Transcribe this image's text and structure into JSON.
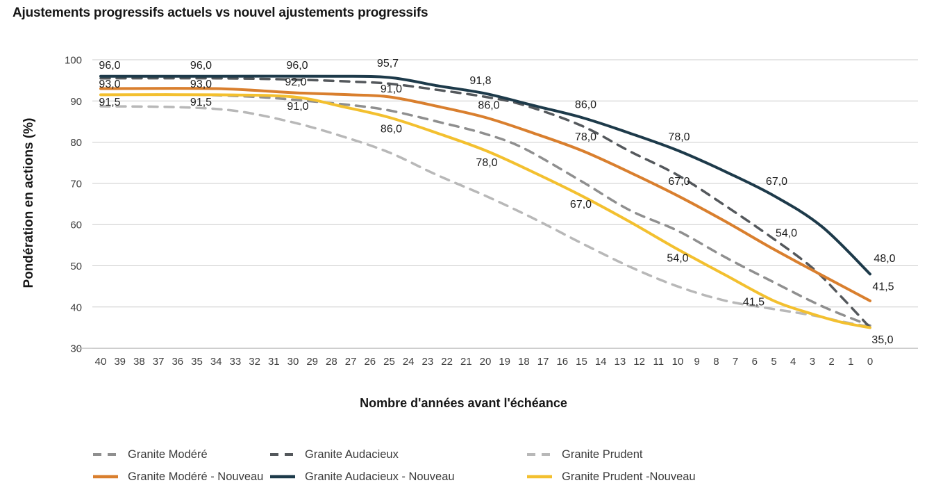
{
  "title": "Ajustements progressifs actuels vs nouvel ajustements progressifs",
  "chart_data": {
    "type": "line",
    "title": "Ajustements progressifs actuels vs nouvel ajustements progressifs",
    "xlabel": "Nombre d'années avant l'échéance",
    "ylabel": "Pondération en actions (%)",
    "x_ticks": [
      40,
      39,
      38,
      37,
      36,
      35,
      34,
      33,
      32,
      31,
      30,
      29,
      28,
      27,
      26,
      25,
      24,
      23,
      22,
      21,
      20,
      19,
      18,
      17,
      16,
      15,
      14,
      13,
      12,
      11,
      10,
      9,
      8,
      7,
      6,
      5,
      4,
      3,
      2,
      1,
      0
    ],
    "y_ticks": [
      100,
      90,
      80,
      70,
      60,
      50,
      40,
      30
    ],
    "ylim": [
      30,
      100
    ],
    "x_reversed": true,
    "grid": "horizontal",
    "decimal_separator": ",",
    "colors": {
      "granite_modere": "#8f8f8f",
      "granite_audacieux": "#54585c",
      "granite_prudent": "#b8b8b8",
      "granite_modere_nouveau": "#d97f2e",
      "granite_audacieux_nouveau": "#1d3a4a",
      "granite_prudent_nouveau": "#f3c02f",
      "gridline": "#cccccc"
    },
    "series": [
      {
        "id": "granite-prudent",
        "name": "Granite Prudent",
        "color": "#b8b8b8",
        "dashed": true,
        "points": [
          [
            40,
            88.7
          ],
          [
            36,
            88.5
          ],
          [
            33,
            87.6
          ],
          [
            30,
            84.8
          ],
          [
            27.5,
            81.5
          ],
          [
            25,
            77.5
          ],
          [
            22.5,
            72
          ],
          [
            20,
            67
          ],
          [
            17.5,
            61.5
          ],
          [
            15,
            55.5
          ],
          [
            12.5,
            49.8
          ],
          [
            10,
            45
          ],
          [
            7.5,
            41.5
          ],
          [
            5,
            39.5
          ],
          [
            3,
            38
          ],
          [
            1.5,
            36.5
          ],
          [
            0,
            35.2
          ]
        ],
        "labels": []
      },
      {
        "id": "granite-modere",
        "name": "Granite Modéré",
        "color": "#8f8f8f",
        "dashed": true,
        "points": [
          [
            40,
            91.5
          ],
          [
            35,
            91.5
          ],
          [
            32,
            91
          ],
          [
            30,
            90.3
          ],
          [
            27,
            89
          ],
          [
            25,
            87.7
          ],
          [
            22.5,
            85
          ],
          [
            20,
            82
          ],
          [
            18,
            78.5
          ],
          [
            15,
            70.5
          ],
          [
            12.5,
            63.5
          ],
          [
            10,
            58.5
          ],
          [
            7.5,
            52
          ],
          [
            5,
            46
          ],
          [
            2.5,
            40.2
          ],
          [
            0,
            35.5
          ]
        ],
        "labels": []
      },
      {
        "id": "granite-audacieux",
        "name": "Granite Audacieux",
        "color": "#54585c",
        "dashed": true,
        "points": [
          [
            40,
            95.5
          ],
          [
            34,
            95.5
          ],
          [
            30,
            95.2
          ],
          [
            27,
            94.7
          ],
          [
            25,
            94.2
          ],
          [
            22.5,
            92.7
          ],
          [
            20,
            91
          ],
          [
            18,
            89
          ],
          [
            15,
            84
          ],
          [
            12.5,
            77.8
          ],
          [
            10,
            72
          ],
          [
            7.5,
            64.5
          ],
          [
            5,
            56.5
          ],
          [
            3,
            49.5
          ],
          [
            1.5,
            42.5
          ],
          [
            0,
            35
          ]
        ],
        "labels": []
      },
      {
        "id": "granite-prudent-nouveau",
        "name": "Granite Prudent -Nouveau",
        "color": "#f3c02f",
        "dashed": false,
        "points": [
          [
            40,
            91.5
          ],
          [
            34,
            91.5
          ],
          [
            30,
            91
          ],
          [
            27.5,
            88.7
          ],
          [
            25,
            86
          ],
          [
            22.5,
            82.2
          ],
          [
            20,
            78
          ],
          [
            17.5,
            72.7
          ],
          [
            15,
            67
          ],
          [
            12.5,
            60.7
          ],
          [
            10,
            54
          ],
          [
            7.5,
            47.7
          ],
          [
            5,
            41.5
          ],
          [
            3,
            38.3
          ],
          [
            1.5,
            36.3
          ],
          [
            0,
            35
          ]
        ],
        "labels": [
          {
            "x": 40,
            "v": 91.5,
            "text": "91,5",
            "dx": 13,
            "dy": 10
          },
          {
            "x": 35,
            "v": 91.5,
            "text": "91,5",
            "dx": 6,
            "dy": 10
          },
          {
            "x": 30,
            "v": 91,
            "text": "91,0",
            "dx": 7,
            "dy": 13
          },
          {
            "x": 25,
            "v": 86,
            "text": "86,0",
            "dx": 3,
            "dy": 16
          },
          {
            "x": 20,
            "v": 78,
            "text": "78,0",
            "dx": 2,
            "dy": 17
          },
          {
            "x": 15,
            "v": 67,
            "text": "67,0",
            "dx": -1,
            "dy": 12
          },
          {
            "x": 10,
            "v": 54,
            "text": "54,0",
            "dx": 0,
            "dy": 12
          },
          {
            "x": 5,
            "v": 41.5,
            "text": "41,5",
            "dx": -29,
            "dy": 1
          },
          {
            "x": 0,
            "v": 35,
            "text": "35,0",
            "dx": 18,
            "dy": 17
          }
        ]
      },
      {
        "id": "granite-modere-nouveau",
        "name": "Granite Modéré - Nouveau",
        "color": "#d97f2e",
        "dashed": false,
        "points": [
          [
            40,
            93
          ],
          [
            34,
            93
          ],
          [
            30,
            92
          ],
          [
            27,
            91.5
          ],
          [
            25,
            91
          ],
          [
            22.5,
            88.7
          ],
          [
            20,
            86
          ],
          [
            17.5,
            82.2
          ],
          [
            15,
            78
          ],
          [
            12.5,
            72.7
          ],
          [
            10,
            67
          ],
          [
            7.5,
            60.7
          ],
          [
            5,
            54
          ],
          [
            2.5,
            47.7
          ],
          [
            0,
            41.5
          ]
        ],
        "labels": [
          {
            "x": 40,
            "v": 93,
            "text": "93,0",
            "dx": 13,
            "dy": -7
          },
          {
            "x": 35,
            "v": 93,
            "text": "93,0",
            "dx": 6,
            "dy": -7
          },
          {
            "x": 30,
            "v": 92,
            "text": "92,0",
            "dx": 4,
            "dy": -16
          },
          {
            "x": 25,
            "v": 91,
            "text": "91,0",
            "dx": 3,
            "dy": -12
          },
          {
            "x": 20,
            "v": 86,
            "text": "86,0",
            "dx": 5,
            "dy": -18
          },
          {
            "x": 15,
            "v": 78,
            "text": "78,0",
            "dx": 6,
            "dy": -20
          },
          {
            "x": 10,
            "v": 67,
            "text": "67,0",
            "dx": 2,
            "dy": -21
          },
          {
            "x": 5,
            "v": 54,
            "text": "54,0",
            "dx": 18,
            "dy": -24
          },
          {
            "x": 0,
            "v": 41.5,
            "text": "41,5",
            "dx": 19,
            "dy": -21
          }
        ]
      },
      {
        "id": "granite-audacieux-nouveau",
        "name": "Granite Audacieux - Nouveau",
        "color": "#1d3a4a",
        "dashed": false,
        "points": [
          [
            40,
            96
          ],
          [
            34,
            96
          ],
          [
            28,
            96
          ],
          [
            25,
            95.7
          ],
          [
            22.5,
            93.7
          ],
          [
            20,
            91.8
          ],
          [
            17.5,
            88.9
          ],
          [
            15,
            86
          ],
          [
            12.5,
            82.2
          ],
          [
            10,
            78
          ],
          [
            7.5,
            72.8
          ],
          [
            5,
            67
          ],
          [
            2.5,
            59.5
          ],
          [
            0,
            48
          ]
        ],
        "labels": [
          {
            "x": 40,
            "v": 96,
            "text": "96,0",
            "dx": 13,
            "dy": -16
          },
          {
            "x": 35,
            "v": 96,
            "text": "96,0",
            "dx": 6,
            "dy": -16
          },
          {
            "x": 30,
            "v": 96,
            "text": "96,0",
            "dx": 6,
            "dy": -16
          },
          {
            "x": 25,
            "v": 95.7,
            "text": "95,7",
            "dx": -2,
            "dy": -21
          },
          {
            "x": 20,
            "v": 91.8,
            "text": "91,8",
            "dx": -7,
            "dy": -19
          },
          {
            "x": 15,
            "v": 86,
            "text": "86,0",
            "dx": 6,
            "dy": -19
          },
          {
            "x": 10,
            "v": 78,
            "text": "78,0",
            "dx": 2,
            "dy": -20
          },
          {
            "x": 5,
            "v": 67,
            "text": "67,0",
            "dx": 4,
            "dy": -21
          },
          {
            "x": 0,
            "v": 48,
            "text": "48,0",
            "dx": 21,
            "dy": -23
          }
        ]
      }
    ],
    "legend_rows": [
      [
        1,
        2,
        0
      ],
      [
        4,
        5,
        3
      ]
    ]
  }
}
